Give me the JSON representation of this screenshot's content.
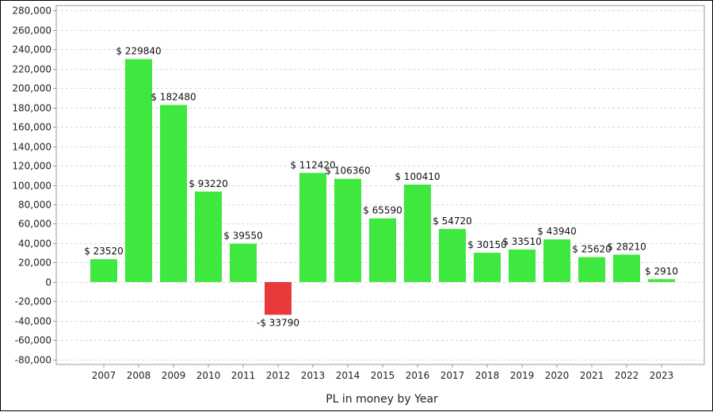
{
  "chart_data": {
    "type": "bar",
    "xlabel": "PL in money by Year",
    "ylabel": "",
    "title": "",
    "ylim": [
      -85000,
      285000
    ],
    "yticks": [
      280000,
      260000,
      240000,
      220000,
      200000,
      180000,
      160000,
      140000,
      120000,
      100000,
      80000,
      60000,
      40000,
      20000,
      0,
      -20000,
      -40000,
      -60000,
      -80000
    ],
    "ytick_labels": [
      "280,000",
      "260,000",
      "240,000",
      "220,000",
      "200,000",
      "180,000",
      "160,000",
      "140,000",
      "120,000",
      "100,000",
      "80,000",
      "60,000",
      "40,000",
      "20,000",
      "0",
      "-20,000",
      "-40,000",
      "-60,000",
      "-80,000"
    ],
    "grid": true,
    "categories": [
      "2007",
      "2008",
      "2009",
      "2010",
      "2011",
      "2012",
      "2013",
      "2014",
      "2015",
      "2016",
      "2017",
      "2018",
      "2019",
      "2020",
      "2021",
      "2022",
      "2023"
    ],
    "values": [
      23520,
      229840,
      182480,
      93220,
      39550,
      -33790,
      112420,
      106360,
      65590,
      100410,
      54720,
      30150,
      33510,
      43940,
      25620,
      28210,
      2910
    ],
    "data_labels": [
      "$ 23520",
      "$ 229840",
      "$ 182480",
      "$ 93220",
      "$ 39550",
      "-$ 33790",
      "$ 112420",
      "$ 106360",
      "$ 65590",
      "$ 100410",
      "$ 54720",
      "$ 30150",
      "$ 33510",
      "$ 43940",
      "$ 25620",
      "$ 28210",
      "$ 2910"
    ],
    "colors": {
      "positive": "#3ee83e",
      "negative": "#e83a3a",
      "grid": "#d8d8d8",
      "axis": "#999999"
    }
  }
}
